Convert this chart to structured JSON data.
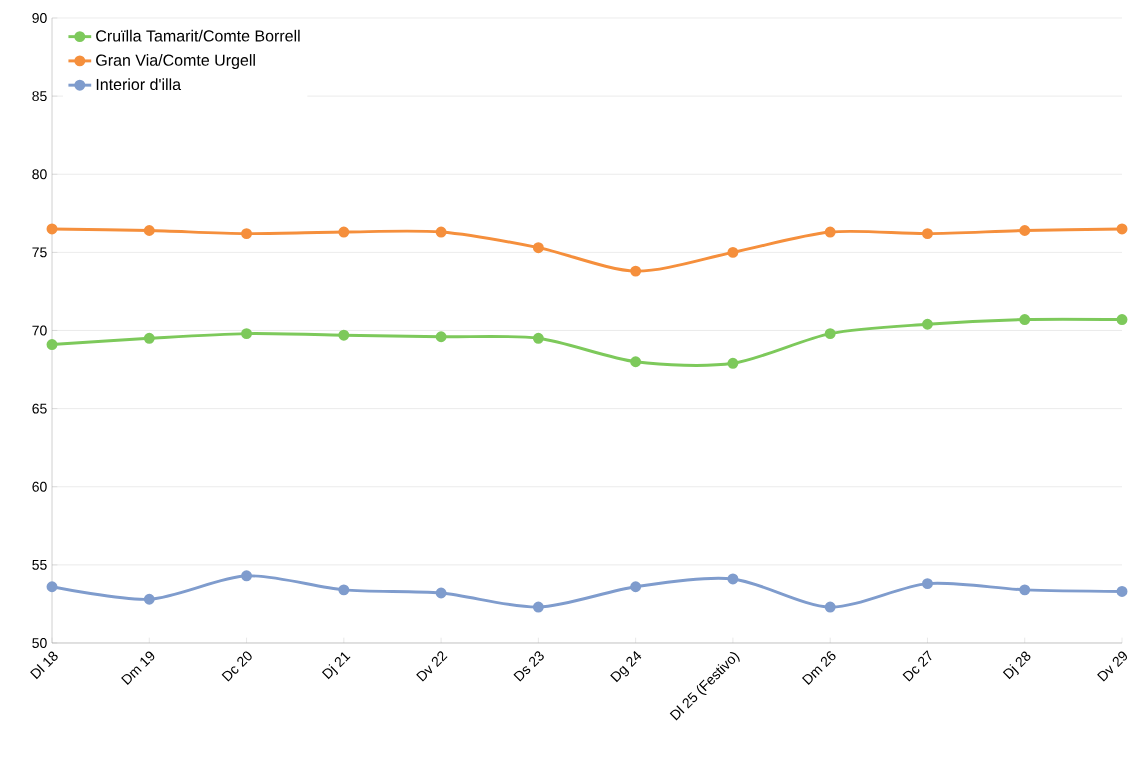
{
  "chart_data": {
    "type": "line",
    "categories": [
      "Dl 18",
      "Dm 19",
      "Dc 20",
      "Dj 21",
      "Dv 22",
      "Ds 23",
      "Dg 24",
      "Dl 25 (Festivo)",
      "Dm 26",
      "Dc 27",
      "Dj 28",
      "Dv 29"
    ],
    "series": [
      {
        "name": "Cruïlla Tamarit/Comte Borrell",
        "color": "#7dc95b",
        "values": [
          69.1,
          69.5,
          69.8,
          69.7,
          69.6,
          69.5,
          68.0,
          67.9,
          69.8,
          70.4,
          70.7,
          70.7
        ]
      },
      {
        "name": "Gran Via/Comte Urgell",
        "color": "#f58f3c",
        "values": [
          76.5,
          76.4,
          76.2,
          76.3,
          76.3,
          75.3,
          73.8,
          75.0,
          76.3,
          76.2,
          76.4,
          76.5
        ]
      },
      {
        "name": "Interior d'illa",
        "color": "#7f9ccd",
        "values": [
          53.6,
          52.8,
          54.3,
          53.4,
          53.2,
          52.3,
          53.6,
          54.1,
          52.3,
          53.8,
          53.4,
          53.3
        ]
      }
    ],
    "ylim": [
      50,
      90
    ],
    "yticks": [
      50,
      55,
      60,
      65,
      70,
      75,
      80,
      85,
      90
    ],
    "grid": "y",
    "legend": "top left",
    "marker": "circle",
    "line_style": "solid"
  }
}
